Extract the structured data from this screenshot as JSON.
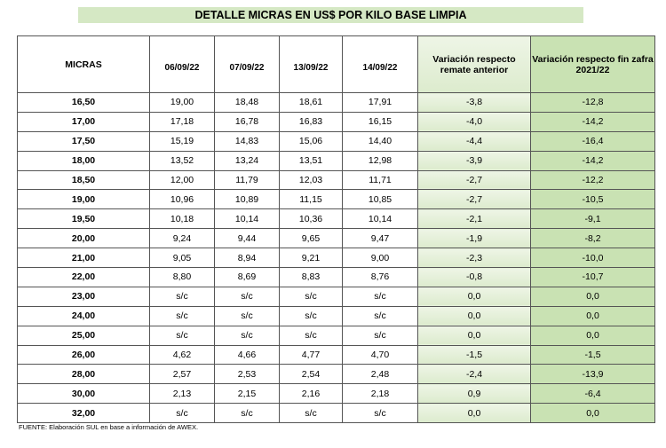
{
  "title": "DETALLE MICRAS EN US$ POR KILO BASE LIMPIA",
  "table": {
    "headers": [
      "MICRAS",
      "06/09/22",
      "07/09/22",
      "13/09/22",
      "14/09/22",
      "Variación respecto remate anterior",
      "Variación respecto fin zafra 2021/22"
    ],
    "rows": [
      [
        "16,50",
        "19,00",
        "18,48",
        "18,61",
        "17,91",
        "-3,8",
        "-12,8"
      ],
      [
        "17,00",
        "17,18",
        "16,78",
        "16,83",
        "16,15",
        "-4,0",
        "-14,2"
      ],
      [
        "17,50",
        "15,19",
        "14,83",
        "15,06",
        "14,40",
        "-4,4",
        "-16,4"
      ],
      [
        "18,00",
        "13,52",
        "13,24",
        "13,51",
        "12,98",
        "-3,9",
        "-14,2"
      ],
      [
        "18,50",
        "12,00",
        "11,79",
        "12,03",
        "11,71",
        "-2,7",
        "-12,2"
      ],
      [
        "19,00",
        "10,96",
        "10,89",
        "11,15",
        "10,85",
        "-2,7",
        "-10,5"
      ],
      [
        "19,50",
        "10,18",
        "10,14",
        "10,36",
        "10,14",
        "-2,1",
        "-9,1"
      ],
      [
        "20,00",
        "9,24",
        "9,44",
        "9,65",
        "9,47",
        "-1,9",
        "-8,2"
      ],
      [
        "21,00",
        "9,05",
        "8,94",
        "9,21",
        "9,00",
        "-2,3",
        "-10,0"
      ],
      [
        "22,00",
        "8,80",
        "8,69",
        "8,83",
        "8,76",
        "-0,8",
        "-10,7"
      ],
      [
        "23,00",
        "s/c",
        "s/c",
        "s/c",
        "s/c",
        "0,0",
        "0,0"
      ],
      [
        "24,00",
        "s/c",
        "s/c",
        "s/c",
        "s/c",
        "0,0",
        "0,0"
      ],
      [
        "25,00",
        "s/c",
        "s/c",
        "s/c",
        "s/c",
        "0,0",
        "0,0"
      ],
      [
        "26,00",
        "4,62",
        "4,66",
        "4,77",
        "4,70",
        "-1,5",
        "-1,5"
      ],
      [
        "28,00",
        "2,57",
        "2,53",
        "2,54",
        "2,48",
        "-2,4",
        "-13,9"
      ],
      [
        "30,00",
        "2,13",
        "2,15",
        "2,16",
        "2,18",
        "0,9",
        "-6,4"
      ],
      [
        "32,00",
        "s/c",
        "s/c",
        "s/c",
        "s/c",
        "0,0",
        "0,0"
      ]
    ]
  },
  "footer": "FUENTE: Elaboración SUL en base a información de AWEX."
}
